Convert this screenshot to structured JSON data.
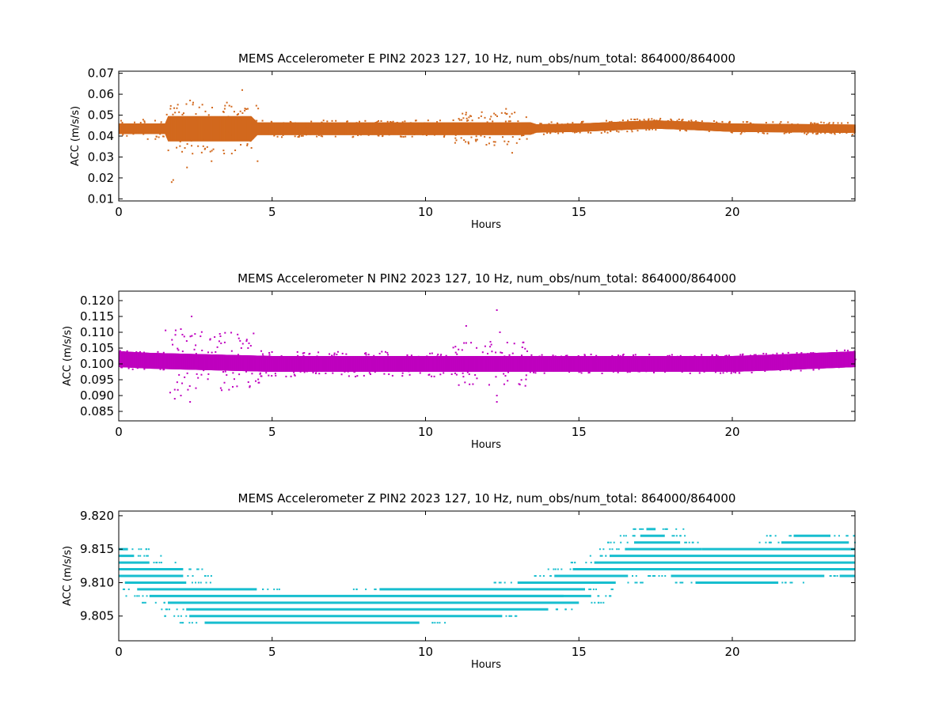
{
  "chart_data": [
    {
      "type": "scatter",
      "title": "MEMS Accelerometer E PIN2 2023 127, 10 Hz, num_obs/num_total: 864000/864000",
      "xlabel": "Hours",
      "ylabel": "ACC (m/s/s)",
      "xlim": [
        0,
        24
      ],
      "ylim": [
        0.009,
        0.071
      ],
      "xticks": [
        "0",
        "5",
        "10",
        "15",
        "20"
      ],
      "xtick_values": [
        0,
        5,
        10,
        15,
        20
      ],
      "yticks": [
        "0.01",
        "0.02",
        "0.03",
        "0.04",
        "0.05",
        "0.06",
        "0.07"
      ],
      "ytick_values": [
        0.01,
        0.02,
        0.03,
        0.04,
        0.05,
        0.06,
        0.07
      ],
      "color": "#d2691e",
      "grid": false,
      "series": [
        {
          "baseline": [
            [
              0,
              0.0435
            ],
            [
              10,
              0.0435
            ],
            [
              13,
              0.0435
            ],
            [
              15,
              0.044
            ],
            [
              16.5,
              0.045
            ],
            [
              17.5,
              0.0455
            ],
            [
              18.5,
              0.045
            ],
            [
              20,
              0.044
            ],
            [
              24,
              0.0435
            ]
          ],
          "band_halfwidth": [
            [
              0,
              0.0025
            ],
            [
              1.5,
              0.0025
            ],
            [
              1.6,
              0.006
            ],
            [
              4.3,
              0.006
            ],
            [
              4.5,
              0.003
            ],
            [
              13.4,
              0.003
            ],
            [
              13.6,
              0.002
            ],
            [
              24,
              0.002
            ]
          ],
          "scatter_envelope": [
            [
              0,
              0.005
            ],
            [
              1.5,
              0.005
            ],
            [
              1.6,
              0.012
            ],
            [
              4.5,
              0.012
            ],
            [
              4.6,
              0.004
            ],
            [
              10.8,
              0.004
            ],
            [
              11,
              0.008
            ],
            [
              13.2,
              0.008
            ],
            [
              13.4,
              0.003
            ],
            [
              24,
              0.003
            ]
          ],
          "outliers": [
            [
              1.7,
              0.018
            ],
            [
              1.75,
              0.019
            ],
            [
              2.2,
              0.025
            ],
            [
              2.3,
              0.057
            ],
            [
              2.4,
              0.056
            ],
            [
              3.0,
              0.028
            ],
            [
              3.5,
              0.056
            ],
            [
              4.0,
              0.062
            ],
            [
              4.5,
              0.028
            ],
            [
              12.6,
              0.053
            ],
            [
              12.8,
              0.032
            ],
            [
              1.9,
              0.055
            ],
            [
              2.7,
              0.055
            ]
          ]
        }
      ]
    },
    {
      "type": "scatter",
      "title": "MEMS Accelerometer N PIN2 2023 127, 10 Hz, num_obs/num_total: 864000/864000",
      "xlabel": "Hours",
      "ylabel": "ACC (m/s/s)",
      "xlim": [
        0,
        24
      ],
      "ylim": [
        0.082,
        0.123
      ],
      "xticks": [
        "0",
        "5",
        "10",
        "15",
        "20"
      ],
      "xtick_values": [
        0,
        5,
        10,
        15,
        20
      ],
      "yticks": [
        "0.085",
        "0.090",
        "0.095",
        "0.100",
        "0.105",
        "0.110",
        "0.115",
        "0.120"
      ],
      "ytick_values": [
        0.085,
        0.09,
        0.095,
        0.1,
        0.105,
        0.11,
        0.115,
        0.12
      ],
      "color": "#bf00bf",
      "grid": false,
      "series": [
        {
          "baseline": [
            [
              0,
              0.1015
            ],
            [
              1,
              0.101
            ],
            [
              5,
              0.1
            ],
            [
              15,
              0.1
            ],
            [
              20,
              0.1
            ],
            [
              21.5,
              0.1005
            ],
            [
              24,
              0.1015
            ]
          ],
          "band_halfwidth": [
            [
              0,
              0.0025
            ],
            [
              24,
              0.0025
            ]
          ],
          "scatter_envelope": [
            [
              0,
              0.003
            ],
            [
              1.4,
              0.003
            ],
            [
              1.5,
              0.01
            ],
            [
              4.5,
              0.01
            ],
            [
              4.6,
              0.004
            ],
            [
              10.8,
              0.004
            ],
            [
              11,
              0.007
            ],
            [
              13.4,
              0.007
            ],
            [
              13.5,
              0.003
            ],
            [
              24,
              0.003
            ]
          ],
          "outliers": [
            [
              1.8,
              0.089
            ],
            [
              2.0,
              0.09
            ],
            [
              2.3,
              0.088
            ],
            [
              2.35,
              0.115
            ],
            [
              2.0,
              0.111
            ],
            [
              11.3,
              0.112
            ],
            [
              12.3,
              0.117
            ],
            [
              12.3,
              0.088
            ],
            [
              12.3,
              0.09
            ],
            [
              12.4,
              0.11
            ]
          ]
        }
      ]
    },
    {
      "type": "scatter",
      "title": "MEMS Accelerometer Z PIN2 2023 127, 10 Hz, num_obs/num_total: 864000/864000",
      "xlabel": "Hours",
      "ylabel": "ACC (m/s/s)",
      "xlim": [
        0,
        24
      ],
      "ylim": [
        9.8013,
        9.8207
      ],
      "xticks": [
        "0",
        "5",
        "10",
        "15",
        "20"
      ],
      "xtick_values": [
        0,
        5,
        10,
        15,
        20
      ],
      "yticks": [
        "9.805",
        "9.810",
        "9.815",
        "9.820"
      ],
      "ytick_values": [
        9.805,
        9.81,
        9.815,
        9.82
      ],
      "color": "#17becf",
      "grid": false,
      "quantization_step": 0.001,
      "series": [
        {
          "baseline": [
            [
              0,
              9.8125
            ],
            [
              1,
              9.8115
            ],
            [
              2,
              9.81
            ],
            [
              3,
              9.807
            ],
            [
              5,
              9.8063
            ],
            [
              8,
              9.8063
            ],
            [
              11,
              9.8065
            ],
            [
              13,
              9.8072
            ],
            [
              14.5,
              9.809
            ],
            [
              15.5,
              9.811
            ],
            [
              16.5,
              9.8125
            ],
            [
              17.5,
              9.8145
            ],
            [
              18,
              9.8135
            ],
            [
              19,
              9.8118
            ],
            [
              21,
              9.812
            ],
            [
              23,
              9.813
            ],
            [
              24,
              9.8133
            ]
          ],
          "levels": [
            {
              "y": 9.815,
              "x0": 0.0,
              "x1": 0.3
            },
            {
              "y": 9.814,
              "x0": 0.0,
              "x1": 0.5
            },
            {
              "y": 9.813,
              "x0": 0.0,
              "x1": 1.0
            },
            {
              "y": 9.812,
              "x0": 0.0,
              "x1": 2.1
            },
            {
              "y": 9.811,
              "x0": 0.0,
              "x1": 2.1
            },
            {
              "y": 9.81,
              "x0": 0.2,
              "x1": 2.2
            },
            {
              "y": 9.809,
              "x0": 0.6,
              "x1": 4.5
            },
            {
              "y": 9.808,
              "x0": 1.0,
              "x1": 14.5
            },
            {
              "y": 9.807,
              "x0": 1.6,
              "x1": 15.0
            },
            {
              "y": 9.806,
              "x0": 2.2,
              "x1": 14.0
            },
            {
              "y": 9.805,
              "x0": 2.3,
              "x1": 12.5
            },
            {
              "y": 9.804,
              "x0": 2.8,
              "x1": 9.8
            },
            {
              "y": 9.808,
              "x0": 9.5,
              "x1": 15.4
            },
            {
              "y": 9.809,
              "x0": 8.5,
              "x1": 15.2
            },
            {
              "y": 9.81,
              "x0": 13.0,
              "x1": 16.2
            },
            {
              "y": 9.811,
              "x0": 14.2,
              "x1": 16.6
            },
            {
              "y": 9.812,
              "x0": 14.8,
              "x1": 24.0
            },
            {
              "y": 9.813,
              "x0": 15.5,
              "x1": 24.0
            },
            {
              "y": 9.814,
              "x0": 16.0,
              "x1": 24.0
            },
            {
              "y": 9.815,
              "x0": 16.5,
              "x1": 19.0
            },
            {
              "y": 9.816,
              "x0": 16.8,
              "x1": 18.3
            },
            {
              "y": 9.817,
              "x0": 17.0,
              "x1": 17.8
            },
            {
              "y": 9.818,
              "x0": 17.2,
              "x1": 17.5
            },
            {
              "y": 9.815,
              "x0": 19.0,
              "x1": 24.0
            },
            {
              "y": 9.816,
              "x0": 21.6,
              "x1": 23.8
            },
            {
              "y": 9.817,
              "x0": 22.0,
              "x1": 23.2
            },
            {
              "y": 9.811,
              "x0": 18.0,
              "x1": 23.0
            },
            {
              "y": 9.81,
              "x0": 18.8,
              "x1": 21.5
            },
            {
              "y": 9.811,
              "x0": 23.5,
              "x1": 24.0
            }
          ]
        }
      ]
    }
  ]
}
